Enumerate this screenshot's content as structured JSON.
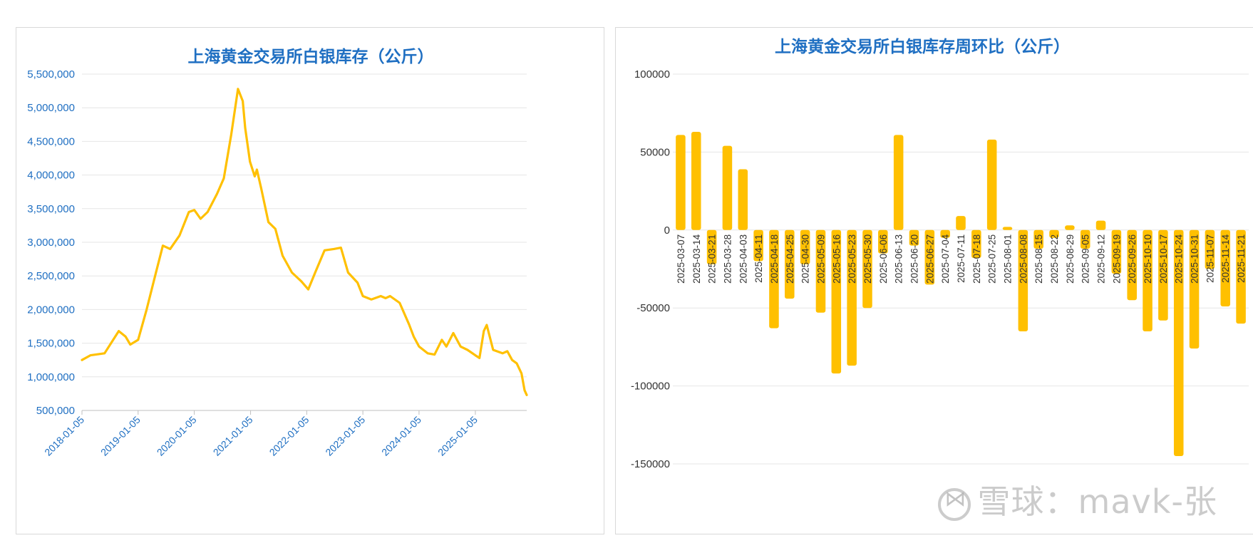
{
  "chart_data": [
    {
      "type": "line",
      "title": "上海黄金交易所白银库存（公斤）",
      "xlabel": "",
      "ylabel": "",
      "ylim": [
        500000,
        5500000
      ],
      "yticks": [
        "5,500,000",
        "5,000,000",
        "4,500,000",
        "4,000,000",
        "3,500,000",
        "3,000,000",
        "2,500,000",
        "2,000,000",
        "1,500,000",
        "1,000,000",
        "500,000"
      ],
      "ytick_values": [
        5500000,
        5000000,
        4500000,
        4000000,
        3500000,
        3000000,
        2500000,
        2000000,
        1500000,
        1000000,
        500000
      ],
      "xticks": [
        "2018-01-05",
        "2019-01-05",
        "2020-01-05",
        "2021-01-05",
        "2022-01-05",
        "2023-01-05",
        "2024-01-05",
        "2025-01-05"
      ],
      "xrange": [
        "2018-01-05",
        "2025-12-05"
      ],
      "grid": true,
      "series": [
        {
          "color": "#ffc000",
          "x": [
            "2018-01-05",
            "2018-03-01",
            "2018-06-01",
            "2018-09-01",
            "2018-10-15",
            "2018-11-15",
            "2019-01-05",
            "2019-03-01",
            "2019-05-01",
            "2019-06-15",
            "2019-08-01",
            "2019-10-01",
            "2019-12-01",
            "2020-01-05",
            "2020-02-15",
            "2020-04-01",
            "2020-06-01",
            "2020-07-15",
            "2020-09-01",
            "2020-10-15",
            "2020-11-15",
            "2020-12-01",
            "2021-01-01",
            "2021-02-01",
            "2021-02-15",
            "2021-03-15",
            "2021-05-01",
            "2021-06-15",
            "2021-08-01",
            "2021-10-01",
            "2021-12-01",
            "2022-01-15",
            "2022-03-01",
            "2022-05-01",
            "2022-07-01",
            "2022-08-15",
            "2022-10-01",
            "2022-12-01",
            "2023-01-05",
            "2023-03-01",
            "2023-05-01",
            "2023-06-01",
            "2023-07-01",
            "2023-09-01",
            "2023-11-01",
            "2023-12-01",
            "2024-01-05",
            "2024-03-01",
            "2024-04-15",
            "2024-06-01",
            "2024-07-01",
            "2024-08-15",
            "2024-10-01",
            "2024-11-15",
            "2025-01-05",
            "2025-02-01",
            "2025-03-01",
            "2025-03-20",
            "2025-05-01",
            "2025-07-01",
            "2025-08-01",
            "2025-09-01",
            "2025-10-01",
            "2025-11-01",
            "2025-11-21",
            "2025-12-05"
          ],
          "y": [
            1250000,
            1320000,
            1350000,
            1680000,
            1600000,
            1480000,
            1550000,
            2000000,
            2550000,
            2950000,
            2900000,
            3100000,
            3450000,
            3480000,
            3350000,
            3450000,
            3720000,
            3950000,
            4600000,
            5280000,
            5100000,
            4700000,
            4200000,
            3980000,
            4080000,
            3800000,
            3300000,
            3200000,
            2800000,
            2550000,
            2420000,
            2300000,
            2550000,
            2880000,
            2900000,
            2920000,
            2550000,
            2400000,
            2200000,
            2150000,
            2200000,
            2170000,
            2200000,
            2100000,
            1780000,
            1600000,
            1450000,
            1350000,
            1330000,
            1550000,
            1450000,
            1650000,
            1450000,
            1400000,
            1320000,
            1280000,
            1680000,
            1770000,
            1400000,
            1350000,
            1380000,
            1250000,
            1200000,
            1050000,
            800000,
            730000
          ]
        }
      ]
    },
    {
      "type": "bar",
      "title": "上海黄金交易所白银库存周环比（公斤）",
      "xlabel": "",
      "ylabel": "",
      "ylim": [
        -150000,
        100000
      ],
      "yticks": [
        "100000",
        "50000",
        "0",
        "-50000",
        "-100000",
        "-150000"
      ],
      "ytick_values": [
        100000,
        50000,
        0,
        -50000,
        -100000,
        -150000
      ],
      "grid": true,
      "color": "#ffc000",
      "categories": [
        "2025-03-07",
        "2025-03-14",
        "2025-03-21",
        "2025-03-28",
        "2025-04-03",
        "2025-04-11",
        "2025-04-18",
        "2025-04-25",
        "2025-04-30",
        "2025-05-09",
        "2025-05-16",
        "2025-05-23",
        "2025-05-30",
        "2025-06-06",
        "2025-06-13",
        "2025-06-20",
        "2025-06-27",
        "2025-07-04",
        "2025-07-11",
        "2025-07-18",
        "2025-07-25",
        "2025-08-01",
        "2025-08-08",
        "2025-08-15",
        "2025-08-22",
        "2025-08-29",
        "2025-09-05",
        "2025-09-12",
        "2025-09-19",
        "2025-09-26",
        "2025-10-10",
        "2025-10-17",
        "2025-10-24",
        "2025-10-31",
        "2025-11-07",
        "2025-11-14",
        "2025-11-21"
      ],
      "values": [
        61000,
        63000,
        -22000,
        54000,
        39000,
        -20000,
        -63000,
        -44000,
        -22000,
        -53000,
        -92000,
        -87000,
        -50000,
        -15000,
        61000,
        -10000,
        -35000,
        -5000,
        9000,
        -18000,
        58000,
        2000,
        -65000,
        -12000,
        -5000,
        3000,
        -12000,
        6000,
        -28000,
        -45000,
        -65000,
        -58000,
        -145000,
        -76000,
        -25000,
        -49000,
        -60000
      ]
    }
  ],
  "watermark": {
    "text": "雪球：mavk-张"
  }
}
